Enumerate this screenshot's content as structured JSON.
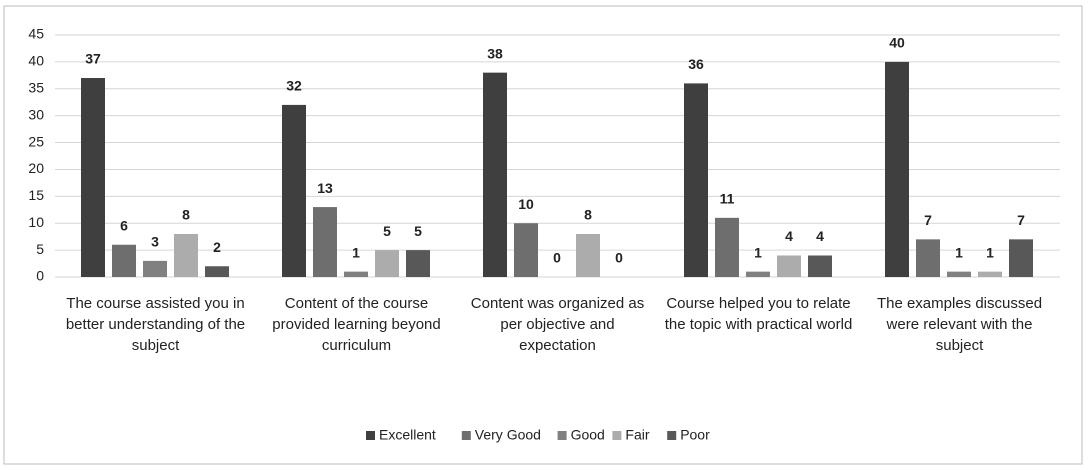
{
  "chart_data": {
    "type": "bar",
    "categories": [
      "The course assisted you in better understanding of the subject",
      "Content of the course provided learning beyond curriculum",
      "Content was organized as per objective and expectation",
      "Course helped you to relate the topic with practical world",
      "The examples discussed were relevant with the subject"
    ],
    "series": [
      {
        "name": "Excellent",
        "color": "#3f3f3f",
        "values": [
          37,
          32,
          38,
          36,
          40
        ]
      },
      {
        "name": "Very Good",
        "color": "#6e6e6e",
        "values": [
          6,
          13,
          10,
          11,
          7
        ]
      },
      {
        "name": "Good",
        "color": "#808080",
        "values": [
          3,
          1,
          0,
          1,
          1
        ]
      },
      {
        "name": "Fair",
        "color": "#acacac",
        "values": [
          8,
          5,
          8,
          4,
          1
        ]
      },
      {
        "name": "Poor",
        "color": "#585858",
        "values": [
          2,
          5,
          0,
          4,
          7
        ]
      }
    ],
    "ylim": [
      0,
      45
    ],
    "yticks": [
      0,
      5,
      10,
      15,
      20,
      25,
      30,
      35,
      40,
      45
    ],
    "grid": true,
    "legend": "bottom"
  }
}
